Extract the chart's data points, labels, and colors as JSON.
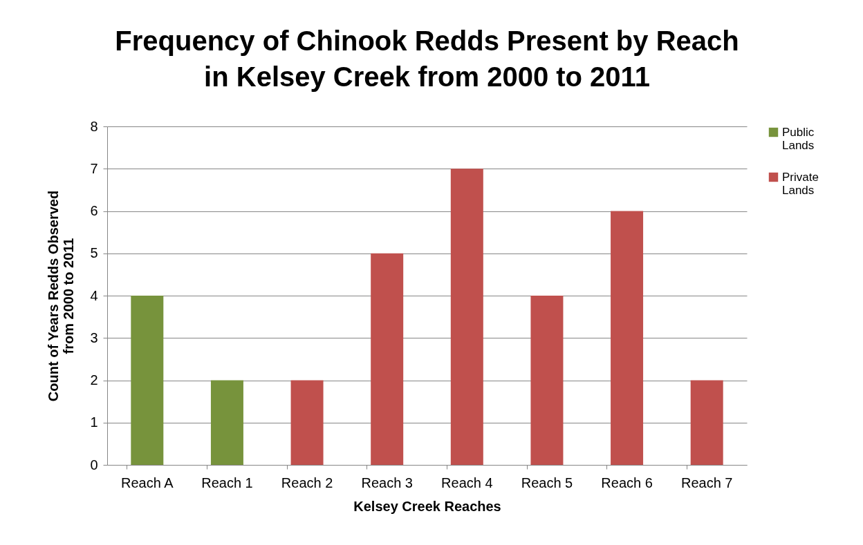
{
  "chart_data": {
    "type": "bar",
    "title": "Frequency of Chinook Redds Present by Reach in Kelsey Creek from 2000 to 2011",
    "xlabel": "Kelsey Creek Reaches",
    "ylabel": "Count of Years Redds Observed from 2000 to 2011",
    "categories": [
      "Reach A",
      "Reach 1",
      "Reach 2",
      "Reach 3",
      "Reach 4",
      "Reach 5",
      "Reach 6",
      "Reach 7"
    ],
    "series": [
      {
        "name": "Public Lands",
        "color": "#77933c",
        "values": [
          4,
          2,
          null,
          null,
          null,
          null,
          null,
          null
        ]
      },
      {
        "name": "Private Lands",
        "color": "#c0504d",
        "values": [
          null,
          null,
          2,
          5,
          7,
          4,
          6,
          2
        ]
      }
    ],
    "ylim": [
      0,
      8
    ],
    "yticks": [
      0,
      1,
      2,
      3,
      4,
      5,
      6,
      7,
      8
    ],
    "grid": "y",
    "legend": "right"
  }
}
